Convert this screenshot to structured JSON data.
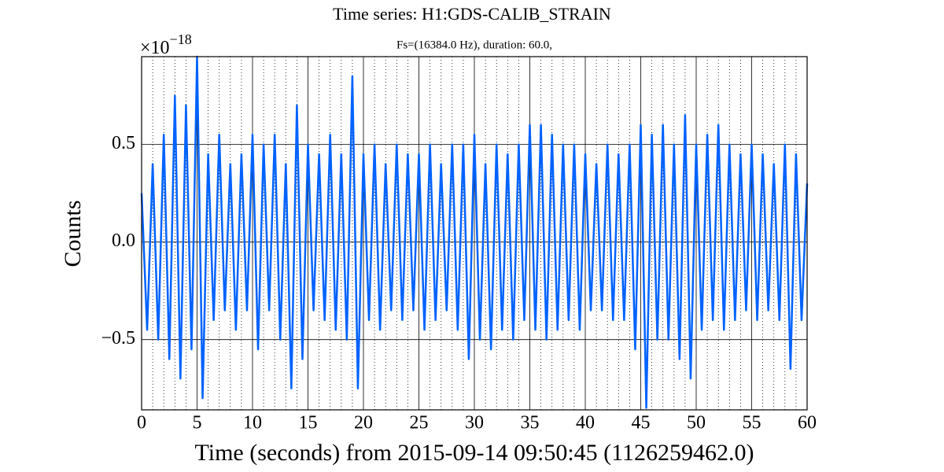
{
  "chart_data": {
    "type": "line",
    "title": "Time series:  H1:GDS-CALIB_STRAIN",
    "subtitle": "Fs=(16384.0 Hz), duration: 60.0,",
    "x_label": "Time (seconds) from 2015-09-14 09:50:45 (1126259462.0)",
    "y_label": "Counts",
    "offset_text": "×10",
    "offset_exponent": "−18",
    "xlim": [
      0,
      60
    ],
    "ylim": [
      -0.86,
      0.95
    ],
    "xticks": [
      0,
      5,
      10,
      15,
      20,
      25,
      30,
      35,
      40,
      45,
      50,
      55,
      60
    ],
    "yticks": [
      {
        "value": -0.5,
        "label": "−0.5"
      },
      {
        "value": 0,
        "label": "0.0"
      },
      0.5
    ],
    "grid": true,
    "x": [
      0,
      0.5,
      1,
      1.5,
      2,
      2.5,
      3,
      3.5,
      4,
      4.5,
      5,
      5.5,
      6,
      6.5,
      7,
      7.5,
      8,
      8.5,
      9,
      9.5,
      10,
      10.5,
      11,
      11.5,
      12,
      12.5,
      13,
      13.5,
      14,
      14.5,
      15,
      15.5,
      16,
      16.5,
      17,
      17.5,
      18,
      18.5,
      19,
      19.5,
      20,
      20.5,
      21,
      21.5,
      22,
      22.5,
      23,
      23.5,
      24,
      24.5,
      25,
      25.5,
      26,
      26.5,
      27,
      27.5,
      28,
      28.5,
      29,
      29.5,
      30,
      30.5,
      31,
      31.5,
      32,
      32.5,
      33,
      33.5,
      34,
      34.5,
      35,
      35.5,
      36,
      36.5,
      37,
      37.5,
      38,
      38.5,
      39,
      39.5,
      40,
      40.5,
      41,
      41.5,
      42,
      42.5,
      43,
      43.5,
      44,
      44.5,
      45,
      45.5,
      46,
      46.5,
      47,
      47.5,
      48,
      48.5,
      49,
      49.5,
      50,
      50.5,
      51,
      51.5,
      52,
      52.5,
      53,
      53.5,
      54,
      54.5,
      55,
      55.5,
      56,
      56.5,
      57,
      57.5,
      58,
      58.5,
      59,
      59.5,
      60
    ],
    "series": [
      {
        "color": "#0062ff",
        "values": [
          0.25,
          -0.45,
          0.4,
          -0.5,
          0.55,
          -0.6,
          0.75,
          -0.7,
          0.7,
          -0.55,
          0.95,
          -0.8,
          0.45,
          -0.4,
          0.55,
          -0.35,
          0.4,
          -0.45,
          0.45,
          -0.35,
          0.55,
          -0.55,
          0.5,
          -0.35,
          0.55,
          -0.5,
          0.4,
          -0.75,
          0.7,
          -0.6,
          0.5,
          -0.35,
          0.45,
          -0.4,
          0.55,
          -0.45,
          0.45,
          -0.5,
          0.85,
          -0.75,
          0.45,
          -0.4,
          0.5,
          -0.45,
          0.4,
          -0.35,
          0.5,
          -0.4,
          0.45,
          -0.35,
          0.45,
          -0.45,
          0.5,
          -0.4,
          0.4,
          -0.35,
          0.5,
          -0.45,
          0.5,
          -0.6,
          0.55,
          -0.5,
          0.4,
          -0.55,
          0.5,
          -0.45,
          0.45,
          -0.5,
          0.5,
          -0.4,
          0.6,
          -0.45,
          0.6,
          -0.5,
          0.55,
          -0.45,
          0.5,
          -0.4,
          0.5,
          -0.45,
          0.45,
          -0.35,
          0.4,
          -0.35,
          0.5,
          -0.4,
          0.45,
          -0.4,
          0.5,
          -0.55,
          0.6,
          -0.85,
          0.55,
          -0.5,
          0.6,
          -0.5,
          0.5,
          -0.6,
          0.65,
          -0.7,
          0.5,
          -0.45,
          0.55,
          -0.4,
          0.6,
          -0.45,
          0.5,
          -0.4,
          0.45,
          -0.35,
          0.5,
          -0.4,
          0.45,
          -0.35,
          0.4,
          -0.4,
          0.5,
          -0.65,
          0.45,
          -0.4,
          0.3
        ]
      }
    ]
  }
}
